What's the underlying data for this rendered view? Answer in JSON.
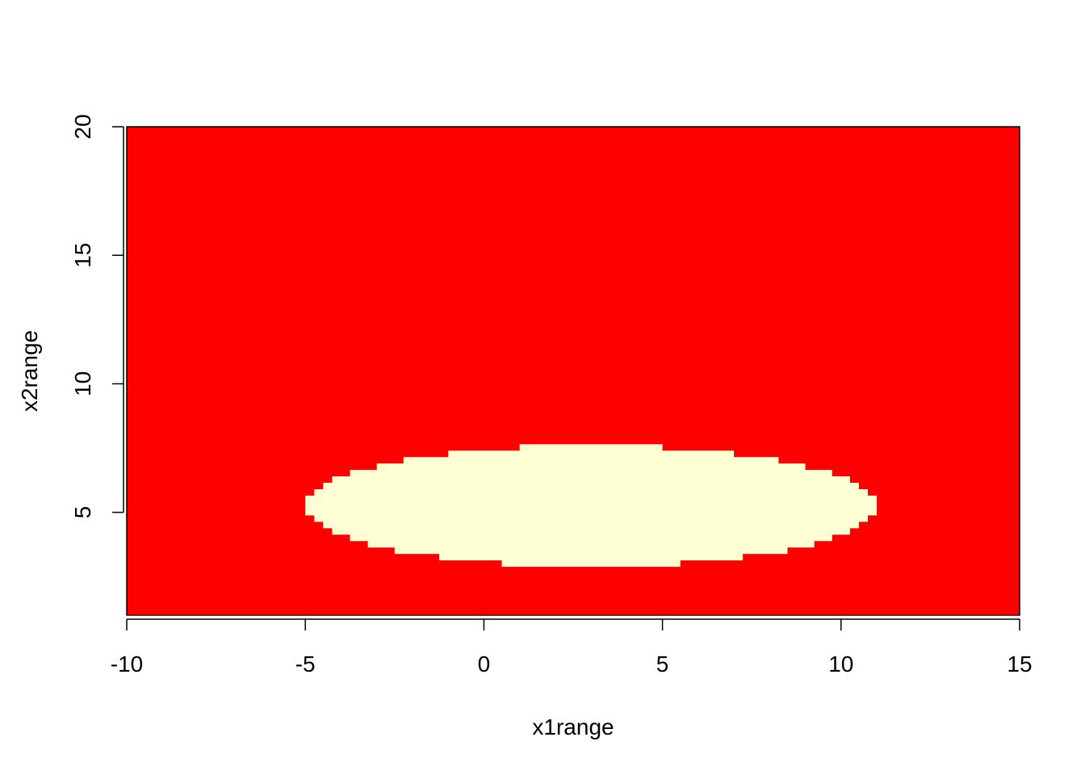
{
  "chart_data": {
    "type": "heatmap",
    "title": "",
    "xlabel": "x1range",
    "ylabel": "x2range",
    "xlim": [
      -10,
      15
    ],
    "ylim": [
      1.0,
      20.0
    ],
    "x_ticks": [
      -10,
      -5,
      0,
      5,
      10,
      15
    ],
    "y_ticks": [
      5,
      10,
      15,
      20
    ],
    "x_tick_labels": [
      "-10",
      "-5",
      "0",
      "5",
      "10",
      "15"
    ],
    "y_tick_labels": [
      "5",
      "10",
      "15",
      "20"
    ],
    "grid": false,
    "legend": "none",
    "classes": [
      {
        "color": "#ff0000"
      },
      {
        "color": "#ffffd4"
      }
    ],
    "region": {
      "shape": "ellipse",
      "x_min": -5.0,
      "x_max": 11.0,
      "y_min": 2.9,
      "y_max": 7.6,
      "class_index": 1,
      "grid_resolution": 0.25
    }
  }
}
